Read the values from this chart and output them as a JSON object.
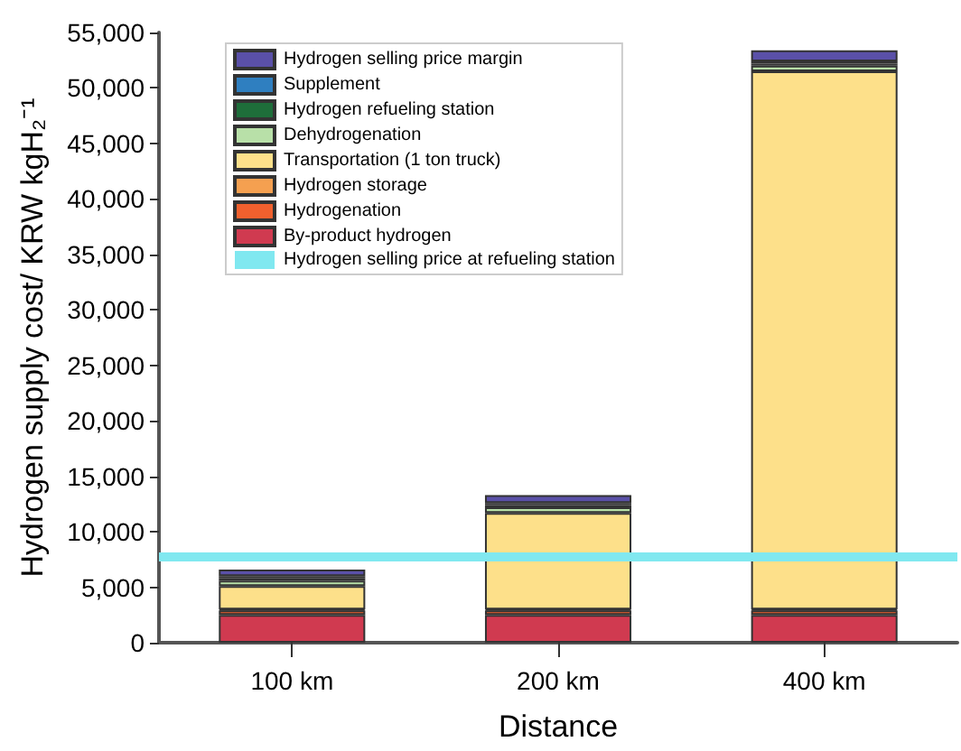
{
  "chart_data": {
    "type": "bar",
    "stacked": true,
    "xlabel": "Distance",
    "ylabel": "Hydrogen supply cost/ KRW kgH₂⁻¹",
    "categories": [
      "100 km",
      "200 km",
      "400 km"
    ],
    "series": [
      {
        "name": "By-product hydrogen",
        "color": "#d03a50",
        "values": [
          2500,
          2500,
          2500
        ]
      },
      {
        "name": "Hydrogenation",
        "color": "#f0602e",
        "values": [
          400,
          400,
          400
        ]
      },
      {
        "name": "Hydrogen storage",
        "color": "#f5a050",
        "values": [
          100,
          100,
          100
        ]
      },
      {
        "name": "Transportation (1 ton truck)",
        "color": "#fde08a",
        "values": [
          2100,
          8700,
          48500
        ]
      },
      {
        "name": "Dehydrogenation",
        "color": "#b8e0a8",
        "values": [
          500,
          500,
          500
        ]
      },
      {
        "name": "Hydrogen refueling station",
        "color": "#1e6e3a",
        "values": [
          200,
          200,
          200
        ]
      },
      {
        "name": "Supplement",
        "color": "#2f7fc0",
        "values": [
          200,
          200,
          200
        ]
      },
      {
        "name": "Hydrogen selling price margin",
        "color": "#5a50a8",
        "values": [
          600,
          700,
          1000
        ]
      }
    ],
    "ref_lines": [
      {
        "axis": "y",
        "value": 7700,
        "label": "Hydrogen selling price at refueling station",
        "color": "#80e8f0"
      }
    ],
    "ylim": [
      0,
      55000
    ],
    "yticks": [
      0,
      {
        "value": 5000,
        "label": "5,000"
      },
      {
        "value": 10000,
        "label": "10,000"
      },
      {
        "value": 15000,
        "label": "15,000"
      },
      {
        "value": 20000,
        "label": "20,000"
      },
      {
        "value": 25000,
        "label": "25,000"
      },
      {
        "value": 30000,
        "label": "30,000"
      },
      {
        "value": 35000,
        "label": "35,000"
      },
      {
        "value": 40000,
        "label": "40,000"
      },
      {
        "value": 45000,
        "label": "45,000"
      },
      {
        "value": 50000,
        "label": "50,000"
      },
      {
        "value": 55000,
        "label": "55,000"
      }
    ],
    "grid": false,
    "legend": "top left"
  }
}
